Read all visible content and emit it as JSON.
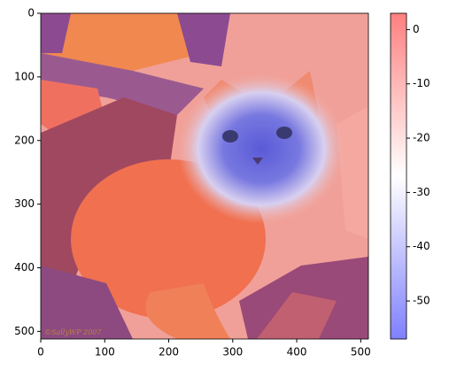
{
  "chart_data": {
    "type": "image",
    "xlim": [
      0,
      512
    ],
    "xticks": [
      0,
      100,
      200,
      300,
      400,
      500
    ],
    "ylim": [
      512,
      0
    ],
    "yticks": [
      0,
      100,
      200,
      300,
      400,
      500
    ],
    "colorbar": {
      "clim": [
        -57,
        3
      ],
      "ticks": [
        0,
        -10,
        -20,
        -30,
        -40,
        -50
      ],
      "colors": [
        "#0000ff",
        "#ffffff",
        "#ff0000"
      ],
      "alpha": 0.5
    },
    "watermark": "©SallyWP 2007"
  }
}
